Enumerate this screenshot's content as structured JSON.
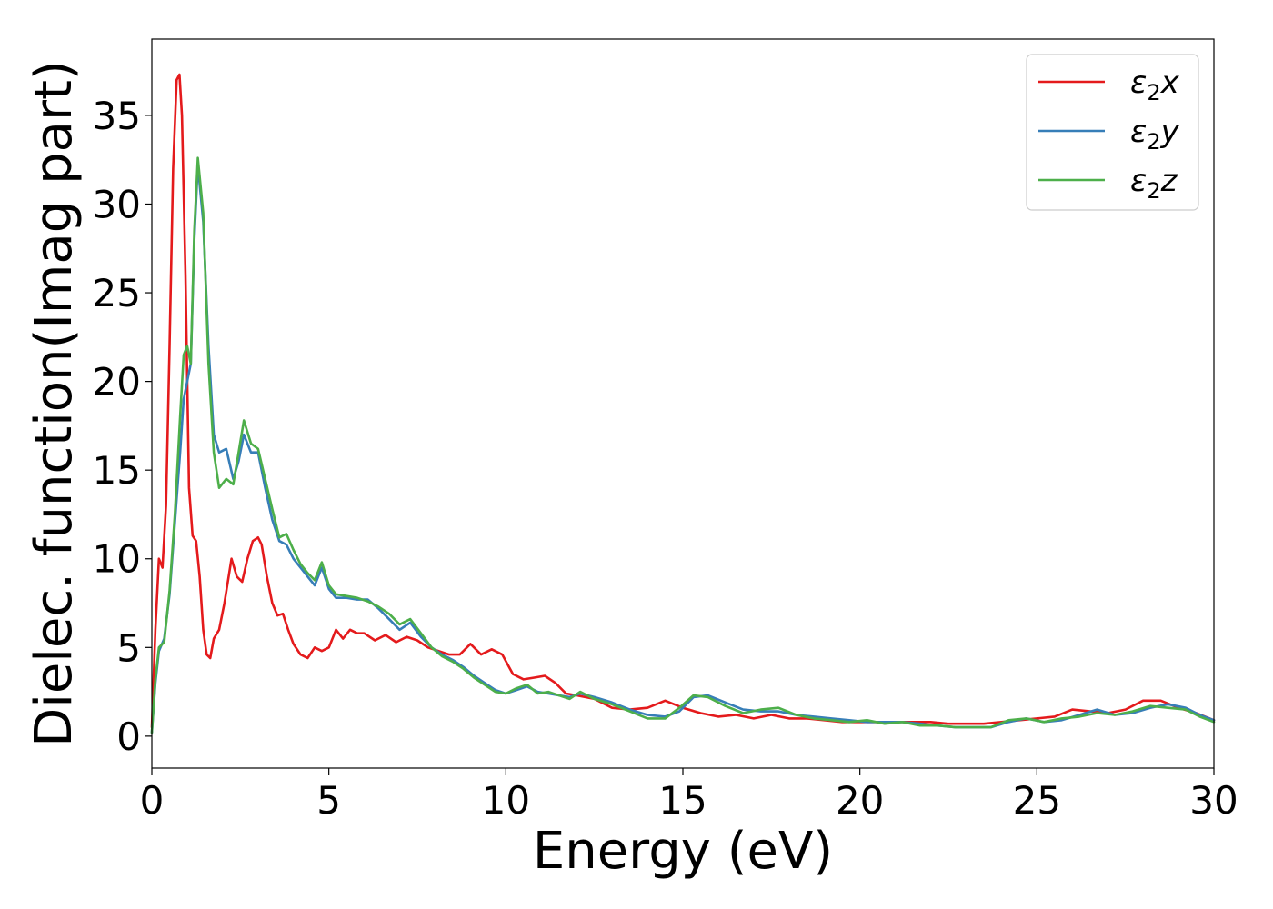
{
  "chart_data": {
    "type": "line",
    "title": "",
    "xlabel": "Energy (eV)",
    "ylabel": "Dielec. function(Imag part)",
    "xlim": [
      0,
      30
    ],
    "ylim": [
      -1.8,
      39.3
    ],
    "xticks": [
      0,
      5,
      10,
      15,
      20,
      25,
      30
    ],
    "yticks": [
      0,
      5,
      10,
      15,
      20,
      25,
      30,
      35
    ],
    "grid": false,
    "legend_position": "top-right",
    "series": [
      {
        "name": "ε₂x",
        "legend_base": "ε",
        "legend_sub": "2",
        "legend_suffix": "x",
        "color": "#e41a1c",
        "x": [
          0,
          0.1,
          0.2,
          0.3,
          0.4,
          0.5,
          0.6,
          0.7,
          0.78,
          0.85,
          0.95,
          1.05,
          1.15,
          1.25,
          1.35,
          1.45,
          1.55,
          1.65,
          1.75,
          1.9,
          2.05,
          2.25,
          2.4,
          2.55,
          2.7,
          2.85,
          3.0,
          3.1,
          3.25,
          3.4,
          3.55,
          3.7,
          3.85,
          4.0,
          4.2,
          4.4,
          4.6,
          4.8,
          5.0,
          5.2,
          5.4,
          5.6,
          5.8,
          6.0,
          6.3,
          6.6,
          6.9,
          7.2,
          7.5,
          7.8,
          8.1,
          8.4,
          8.7,
          9.0,
          9.3,
          9.6,
          9.9,
          10.2,
          10.5,
          10.8,
          11.1,
          11.4,
          11.7,
          12.0,
          12.5,
          13.0,
          13.5,
          14.0,
          14.5,
          15.0,
          15.5,
          16.0,
          16.5,
          17.0,
          17.5,
          18.0,
          18.5,
          19.0,
          19.5,
          20.0,
          20.5,
          21.0,
          21.5,
          22.0,
          22.5,
          23.0,
          23.5,
          24.0,
          24.5,
          25.0,
          25.5,
          26.0,
          26.5,
          27.0,
          27.5,
          28.0,
          28.5,
          29.0,
          29.5,
          30.0
        ],
        "y": [
          0.5,
          6.0,
          10.0,
          9.5,
          13.0,
          22.0,
          32.0,
          37.0,
          37.3,
          35.0,
          26.0,
          14.0,
          11.3,
          11.0,
          9.0,
          6.0,
          4.6,
          4.4,
          5.5,
          6.0,
          7.5,
          10.0,
          9.0,
          8.7,
          10.0,
          11.0,
          11.2,
          10.8,
          9.0,
          7.5,
          6.8,
          6.9,
          6.0,
          5.2,
          4.6,
          4.4,
          5.0,
          4.8,
          5.0,
          6.0,
          5.5,
          6.0,
          5.8,
          5.8,
          5.4,
          5.7,
          5.3,
          5.6,
          5.4,
          5.0,
          4.8,
          4.6,
          4.6,
          5.2,
          4.6,
          4.9,
          4.6,
          3.5,
          3.2,
          3.3,
          3.4,
          3.0,
          2.4,
          2.3,
          2.1,
          1.6,
          1.5,
          1.6,
          2.0,
          1.6,
          1.3,
          1.1,
          1.2,
          1.0,
          1.2,
          1.0,
          1.0,
          0.9,
          0.8,
          0.8,
          0.8,
          0.8,
          0.8,
          0.8,
          0.7,
          0.7,
          0.7,
          0.8,
          0.9,
          1.0,
          1.1,
          1.5,
          1.4,
          1.3,
          1.5,
          2.0,
          2.0,
          1.6,
          1.3,
          0.9
        ]
      },
      {
        "name": "ε₂y",
        "legend_base": "ε",
        "legend_sub": "2",
        "legend_suffix": "y",
        "color": "#377eb8",
        "x": [
          0,
          0.1,
          0.2,
          0.35,
          0.5,
          0.65,
          0.8,
          0.9,
          1.0,
          1.1,
          1.2,
          1.3,
          1.45,
          1.6,
          1.75,
          1.9,
          2.1,
          2.3,
          2.45,
          2.6,
          2.8,
          3.0,
          3.2,
          3.4,
          3.6,
          3.8,
          4.0,
          4.2,
          4.4,
          4.6,
          4.8,
          5.0,
          5.2,
          5.5,
          5.8,
          6.1,
          6.4,
          6.7,
          7.0,
          7.3,
          7.6,
          7.9,
          8.2,
          8.5,
          8.8,
          9.1,
          9.4,
          9.7,
          10.0,
          10.3,
          10.6,
          10.9,
          11.2,
          11.5,
          11.8,
          12.1,
          12.5,
          13.0,
          13.5,
          14.0,
          14.5,
          14.9,
          15.3,
          15.7,
          16.2,
          16.7,
          17.2,
          17.7,
          18.2,
          18.7,
          19.2,
          19.7,
          20.2,
          20.7,
          21.2,
          21.7,
          22.2,
          22.7,
          23.2,
          23.7,
          24.2,
          24.7,
          25.2,
          25.7,
          26.2,
          26.7,
          27.2,
          27.7,
          28.2,
          28.7,
          29.2,
          29.6,
          30.0
        ],
        "y": [
          0.2,
          3.0,
          4.8,
          5.5,
          8.0,
          12.0,
          16.0,
          19.0,
          20.0,
          21.0,
          28.0,
          32.2,
          29.0,
          22.0,
          17.0,
          16.0,
          16.2,
          14.5,
          15.5,
          17.0,
          16.0,
          16.0,
          14.0,
          12.2,
          11.0,
          10.8,
          10.0,
          9.5,
          9.0,
          8.5,
          9.5,
          8.3,
          7.8,
          7.8,
          7.7,
          7.7,
          7.2,
          6.6,
          6.0,
          6.4,
          5.6,
          5.0,
          4.6,
          4.3,
          3.9,
          3.4,
          3.0,
          2.6,
          2.4,
          2.6,
          2.8,
          2.5,
          2.4,
          2.3,
          2.2,
          2.4,
          2.2,
          1.9,
          1.5,
          1.2,
          1.1,
          1.4,
          2.2,
          2.3,
          1.9,
          1.5,
          1.4,
          1.4,
          1.2,
          1.1,
          1.0,
          0.9,
          0.8,
          0.8,
          0.8,
          0.7,
          0.6,
          0.5,
          0.5,
          0.5,
          0.8,
          1.0,
          0.8,
          0.9,
          1.2,
          1.5,
          1.2,
          1.3,
          1.6,
          1.8,
          1.6,
          1.2,
          0.9
        ]
      },
      {
        "name": "ε₂z",
        "legend_base": "ε",
        "legend_sub": "2",
        "legend_suffix": "z",
        "color": "#4daf4a",
        "x": [
          0,
          0.1,
          0.2,
          0.35,
          0.5,
          0.65,
          0.8,
          0.9,
          1.0,
          1.1,
          1.2,
          1.3,
          1.45,
          1.6,
          1.75,
          1.9,
          2.1,
          2.3,
          2.45,
          2.6,
          2.8,
          3.0,
          3.2,
          3.4,
          3.6,
          3.8,
          4.0,
          4.2,
          4.4,
          4.6,
          4.8,
          5.0,
          5.2,
          5.5,
          5.8,
          6.1,
          6.4,
          6.7,
          7.0,
          7.3,
          7.6,
          7.9,
          8.2,
          8.5,
          8.8,
          9.1,
          9.4,
          9.7,
          10.0,
          10.3,
          10.6,
          10.9,
          11.2,
          11.5,
          11.8,
          12.1,
          12.5,
          13.0,
          13.5,
          14.0,
          14.5,
          14.9,
          15.3,
          15.7,
          16.2,
          16.7,
          17.2,
          17.7,
          18.2,
          18.7,
          19.2,
          19.7,
          20.2,
          20.7,
          21.2,
          21.7,
          22.2,
          22.7,
          23.2,
          23.7,
          24.2,
          24.7,
          25.2,
          25.7,
          26.2,
          26.7,
          27.2,
          27.7,
          28.2,
          28.7,
          29.2,
          29.6,
          30.0
        ],
        "y": [
          0.2,
          3.2,
          5.0,
          5.3,
          8.2,
          12.5,
          18.0,
          21.5,
          22.0,
          21.0,
          28.5,
          32.6,
          29.5,
          21.0,
          16.0,
          14.0,
          14.5,
          14.2,
          16.0,
          17.8,
          16.5,
          16.2,
          14.5,
          12.8,
          11.2,
          11.4,
          10.5,
          9.7,
          9.2,
          8.8,
          9.8,
          8.5,
          8.0,
          7.9,
          7.8,
          7.6,
          7.3,
          6.9,
          6.3,
          6.6,
          5.8,
          5.0,
          4.5,
          4.2,
          3.8,
          3.3,
          2.9,
          2.5,
          2.4,
          2.7,
          2.9,
          2.4,
          2.5,
          2.3,
          2.1,
          2.5,
          2.1,
          1.8,
          1.4,
          1.0,
          1.0,
          1.6,
          2.3,
          2.2,
          1.7,
          1.3,
          1.5,
          1.6,
          1.2,
          1.0,
          0.9,
          0.8,
          0.9,
          0.7,
          0.8,
          0.6,
          0.6,
          0.5,
          0.5,
          0.5,
          0.9,
          1.0,
          0.8,
          1.0,
          1.1,
          1.3,
          1.2,
          1.4,
          1.7,
          1.6,
          1.5,
          1.1,
          0.8
        ]
      }
    ]
  }
}
